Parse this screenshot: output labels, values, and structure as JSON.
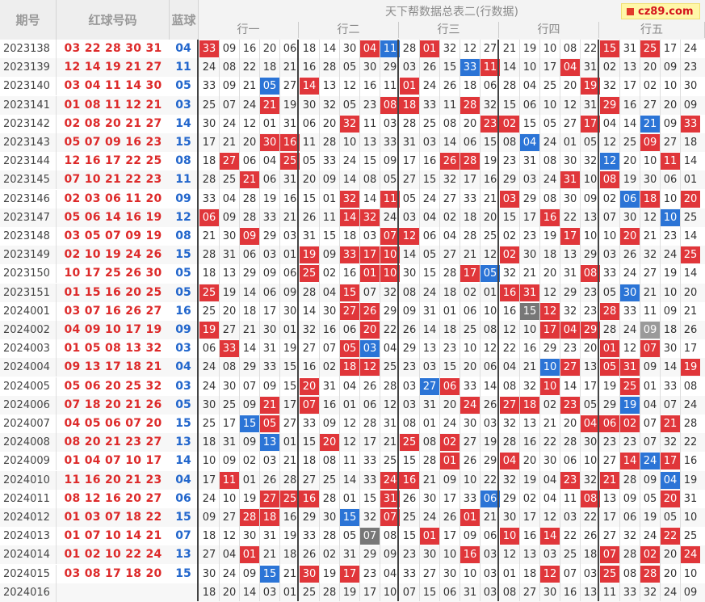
{
  "header": {
    "issue_label": "期号",
    "red_label": "红球号码",
    "blue_label": "蓝球",
    "table_title": "天下帮数据总表二(行数据)",
    "groups": [
      "行一",
      "行二",
      "行三",
      "行四",
      "行五"
    ],
    "logo_text": "cz89.com"
  },
  "colors": {
    "red": "#e0363a",
    "blue": "#2b74d6",
    "gray": "#777777"
  },
  "rows": [
    {
      "issue": "2023138",
      "red": "03 22 28 30 31 33",
      "blue": "04",
      "cells": [
        "33",
        "09",
        "16",
        "20",
        "06",
        "18",
        "14",
        "30",
        "04",
        "11",
        "28",
        "01",
        "32",
        "12",
        "27",
        "21",
        "19",
        "10",
        "08",
        "22",
        "15",
        "31",
        "25",
        "17",
        "24"
      ],
      "marks": "r0000000rb0r00000000r0r000"
    },
    {
      "issue": "2023139",
      "red": "12 14 19 21 27 31",
      "blue": "11",
      "cells": [
        "24",
        "08",
        "22",
        "18",
        "21",
        "16",
        "28",
        "05",
        "30",
        "29",
        "03",
        "26",
        "15",
        "33",
        "11",
        "14",
        "10",
        "17",
        "04",
        "31",
        "02",
        "13",
        "20",
        "09",
        "23"
      ],
      "marks": "0000000000000b r000r00000"
    },
    {
      "issue": "2023140",
      "red": "03 04 11 14 30 31",
      "blue": "05",
      "cells": [
        "33",
        "09",
        "21",
        "05",
        "27",
        "14",
        "13",
        "12",
        "16",
        "11",
        "01",
        "24",
        "26",
        "18",
        "06",
        "28",
        "04",
        "25",
        "20",
        "19",
        "32",
        "17",
        "02",
        "10",
        "30"
      ],
      "marks": "000b0r0000r00000000r000000r"
    },
    {
      "issue": "2023141",
      "red": "01 08 11 12 21 23",
      "blue": "03",
      "cells": [
        "25",
        "07",
        "24",
        "21",
        "19",
        "30",
        "32",
        "05",
        "23",
        "08",
        "18",
        "33",
        "11",
        "28",
        "32",
        "15",
        "06",
        "10",
        "12",
        "31",
        "29",
        "16",
        "27",
        "20",
        "09"
      ],
      "marks": "000r00000rr00r000000r000000"
    },
    {
      "issue": "2023142",
      "red": "02 08 20 21 27 33",
      "blue": "14",
      "cells": [
        "30",
        "24",
        "12",
        "01",
        "31",
        "06",
        "20",
        "32",
        "11",
        "03",
        "28",
        "25",
        "08",
        "20",
        "23",
        "02",
        "15",
        "05",
        "27",
        "17",
        "04",
        "14",
        "21",
        "09",
        "33"
      ],
      "marks": "0000000r000000rr000r00b0r0r"
    },
    {
      "issue": "2023143",
      "red": "05 07 09 16 23 30",
      "blue": "15",
      "cells": [
        "17",
        "21",
        "20",
        "30",
        "16",
        "11",
        "28",
        "10",
        "13",
        "33",
        "31",
        "03",
        "14",
        "06",
        "15",
        "08",
        "04",
        "24",
        "01",
        "05",
        "12",
        "25",
        "09",
        "27",
        "18"
      ],
      "marks": "000rr00000000000b00000r00r00"
    },
    {
      "issue": "2023144",
      "red": "12 16 17 22 25 27",
      "blue": "08",
      "cells": [
        "18",
        "27",
        "06",
        "04",
        "25",
        "05",
        "33",
        "24",
        "15",
        "09",
        "17",
        "16",
        "26",
        "28",
        "19",
        "23",
        "31",
        "08",
        "30",
        "32",
        "12",
        "20",
        "10",
        "11",
        "14"
      ],
      "marks": "0r00r0000000rr000000b00r0000"
    },
    {
      "issue": "2023145",
      "red": "07 10 21 22 23 24",
      "blue": "11",
      "cells": [
        "28",
        "25",
        "21",
        "06",
        "31",
        "20",
        "09",
        "14",
        "08",
        "05",
        "27",
        "15",
        "32",
        "17",
        "16",
        "29",
        "03",
        "24",
        "31",
        "10",
        "08",
        "19",
        "30",
        "06",
        "01"
      ],
      "marks": "00r000000000000000r0r00000"
    },
    {
      "issue": "2023146",
      "red": "02 03 06 11 20 32",
      "blue": "09",
      "cells": [
        "33",
        "04",
        "28",
        "19",
        "16",
        "15",
        "01",
        "32",
        "14",
        "11",
        "05",
        "24",
        "27",
        "33",
        "21",
        "03",
        "29",
        "08",
        "30",
        "09",
        "02",
        "06",
        "18",
        "10",
        "20"
      ],
      "marks": "0000000r0r00000r00000br0r00r"
    },
    {
      "issue": "2023147",
      "red": "05 06 14 16 19 32",
      "blue": "12",
      "cells": [
        "06",
        "09",
        "28",
        "33",
        "21",
        "26",
        "11",
        "14",
        "32",
        "24",
        "03",
        "04",
        "02",
        "18",
        "20",
        "15",
        "17",
        "16",
        "22",
        "13",
        "07",
        "30",
        "12",
        "10",
        "25"
      ],
      "marks": "r000000rr00000000r00000b00"
    },
    {
      "issue": "2023148",
      "red": "03 05 07 09 19 20",
      "blue": "08",
      "cells": [
        "21",
        "30",
        "09",
        "29",
        "03",
        "31",
        "15",
        "18",
        "03",
        "07",
        "12",
        "06",
        "04",
        "28",
        "25",
        "02",
        "23",
        "19",
        "17",
        "10",
        "10",
        "20",
        "21",
        "23",
        "14"
      ],
      "marks": "00r000000rr0000000r00r000"
    },
    {
      "issue": "2023149",
      "red": "02 10 19 24 26 33",
      "blue": "15",
      "cells": [
        "28",
        "31",
        "06",
        "03",
        "01",
        "19",
        "09",
        "33",
        "17",
        "10",
        "14",
        "05",
        "27",
        "21",
        "12",
        "02",
        "30",
        "18",
        "13",
        "29",
        "03",
        "26",
        "32",
        "24",
        "25"
      ],
      "marks": "00000r0rrr00000r00000000r0"
    },
    {
      "issue": "2023150",
      "red": "10 17 25 26 30 33",
      "blue": "05",
      "cells": [
        "18",
        "13",
        "29",
        "09",
        "06",
        "25",
        "02",
        "16",
        "01",
        "10",
        "30",
        "15",
        "28",
        "17",
        "05",
        "32",
        "21",
        "20",
        "31",
        "08",
        "33",
        "24",
        "27",
        "19",
        "14"
      ],
      "marks": "00000r00rr000rb0000r00000"
    },
    {
      "issue": "2023151",
      "red": "01 15 16 20 25 27",
      "blue": "05",
      "cells": [
        "25",
        "19",
        "14",
        "06",
        "09",
        "28",
        "04",
        "15",
        "07",
        "32",
        "08",
        "24",
        "18",
        "02",
        "01",
        "16",
        "31",
        "12",
        "29",
        "23",
        "05",
        "30",
        "21",
        "10",
        "20"
      ],
      "marks": "r000000r0000000rr0000b000r"
    },
    {
      "issue": "2024001",
      "red": "03 07 16 26 27 32",
      "blue": "16",
      "cells": [
        "25",
        "20",
        "18",
        "17",
        "30",
        "14",
        "30",
        "27",
        "26",
        "29",
        "09",
        "31",
        "01",
        "06",
        "10",
        "16",
        "15",
        "12",
        "32",
        "23",
        "28",
        "33",
        "11",
        "09",
        "21"
      ],
      "marks": "0000000rr0000000gr00r000000"
    },
    {
      "issue": "2024002",
      "red": "04 09 10 17 19 20",
      "blue": "09",
      "cells": [
        "19",
        "27",
        "21",
        "30",
        "01",
        "32",
        "16",
        "06",
        "20",
        "22",
        "26",
        "14",
        "18",
        "25",
        "08",
        "12",
        "10",
        "17",
        "04",
        "29",
        "28",
        "24",
        "09",
        "18",
        "26"
      ],
      "marks": "r0000000r00000000rrr00l000"
    },
    {
      "issue": "2024003",
      "red": "01 05 08 13 32 33",
      "blue": "03",
      "cells": [
        "06",
        "33",
        "14",
        "31",
        "19",
        "27",
        "07",
        "05",
        "03",
        "04",
        "29",
        "13",
        "23",
        "10",
        "12",
        "22",
        "16",
        "29",
        "23",
        "20",
        "01",
        "12",
        "07",
        "30",
        "17"
      ],
      "marks": "0r00000rb00000000000r0r00"
    },
    {
      "issue": "2024004",
      "red": "09 13 17 18 21 27",
      "blue": "04",
      "cells": [
        "24",
        "08",
        "29",
        "33",
        "15",
        "16",
        "02",
        "18",
        "12",
        "25",
        "23",
        "03",
        "15",
        "20",
        "06",
        "04",
        "21",
        "10",
        "27",
        "13",
        "05",
        "31",
        "09",
        "14",
        "19"
      ],
      "marks": "0000000rr00000000br0rr00r000"
    },
    {
      "issue": "2024005",
      "red": "05 06 20 25 32 32",
      "blue": "03",
      "cells": [
        "24",
        "30",
        "07",
        "09",
        "15",
        "20",
        "31",
        "04",
        "26",
        "28",
        "03",
        "27",
        "06",
        "33",
        "14",
        "08",
        "32",
        "10",
        "14",
        "17",
        "19",
        "25",
        "01",
        "33",
        "08"
      ],
      "marks": "00000r00000br0000r000r00000"
    },
    {
      "issue": "2024006",
      "red": "07 18 20 21 26 32",
      "blue": "05",
      "cells": [
        "30",
        "25",
        "09",
        "21",
        "17",
        "07",
        "16",
        "01",
        "06",
        "12",
        "03",
        "31",
        "20",
        "24",
        "26",
        "27",
        "18",
        "02",
        "23",
        "05",
        "29",
        "19",
        "04",
        "07",
        "24"
      ],
      "marks": "000r0r0000000r0rr0r00b000r0"
    },
    {
      "issue": "2024007",
      "red": "04 05 06 07 20 22",
      "blue": "15",
      "cells": [
        "25",
        "17",
        "15",
        "05",
        "27",
        "33",
        "09",
        "12",
        "28",
        "31",
        "08",
        "01",
        "24",
        "30",
        "03",
        "32",
        "13",
        "21",
        "20",
        "04",
        "06",
        "02",
        "07",
        "21",
        "28"
      ],
      "marks": "00br000000000000000rrr0r000"
    },
    {
      "issue": "2024008",
      "red": "08 20 21 23 27 30",
      "blue": "13",
      "cells": [
        "18",
        "31",
        "09",
        "13",
        "01",
        "15",
        "20",
        "12",
        "17",
        "21",
        "25",
        "08",
        "02",
        "27",
        "19",
        "28",
        "16",
        "22",
        "28",
        "30",
        "23",
        "23",
        "07",
        "32",
        "22"
      ],
      "marks": "000b00r000r0r000000000000"
    },
    {
      "issue": "2024009",
      "red": "01 04 07 10 17 23",
      "blue": "14",
      "cells": [
        "10",
        "09",
        "02",
        "03",
        "21",
        "18",
        "08",
        "11",
        "33",
        "25",
        "15",
        "28",
        "01",
        "26",
        "29",
        "04",
        "20",
        "30",
        "06",
        "10",
        "27",
        "14",
        "24",
        "17",
        "16"
      ],
      "marks": "000000000000r00r00000rbr0r0"
    },
    {
      "issue": "2024010",
      "red": "11 16 20 21 23 24",
      "blue": "04",
      "cells": [
        "17",
        "11",
        "01",
        "26",
        "28",
        "27",
        "25",
        "14",
        "33",
        "24",
        "16",
        "21",
        "09",
        "10",
        "22",
        "32",
        "19",
        "04",
        "23",
        "32",
        "21",
        "28",
        "09",
        "04",
        "19"
      ],
      "marks": "0r0000000rr0000000r0r00b0"
    },
    {
      "issue": "2024011",
      "red": "08 12 16 20 27 31",
      "blue": "06",
      "cells": [
        "24",
        "10",
        "19",
        "27",
        "25",
        "16",
        "28",
        "01",
        "15",
        "31",
        "26",
        "30",
        "17",
        "33",
        "06",
        "29",
        "02",
        "04",
        "11",
        "08",
        "13",
        "09",
        "05",
        "20",
        "31"
      ],
      "marks": "000rrr000r0000b0000r000r0"
    },
    {
      "issue": "2024012",
      "red": "01 03 07 18 22 28",
      "blue": "15",
      "cells": [
        "09",
        "27",
        "28",
        "18",
        "16",
        "29",
        "30",
        "15",
        "32",
        "07",
        "25",
        "24",
        "26",
        "01",
        "21",
        "30",
        "17",
        "12",
        "03",
        "22",
        "17",
        "06",
        "19",
        "05",
        "10"
      ],
      "marks": "00rr000b0r000r00000000000"
    },
    {
      "issue": "2024013",
      "red": "01 07 10 14 21 25",
      "blue": "07",
      "cells": [
        "18",
        "12",
        "30",
        "31",
        "19",
        "33",
        "28",
        "05",
        "07",
        "08",
        "15",
        "01",
        "17",
        "09",
        "06",
        "10",
        "16",
        "14",
        "22",
        "26",
        "27",
        "32",
        "24",
        "22",
        "25"
      ],
      "marks": "00000000g00r000r0r00000r"
    },
    {
      "issue": "2024014",
      "red": "01 02 10 22 24 25",
      "blue": "13",
      "cells": [
        "27",
        "04",
        "01",
        "21",
        "18",
        "26",
        "02",
        "31",
        "29",
        "09",
        "23",
        "30",
        "10",
        "16",
        "03",
        "12",
        "13",
        "03",
        "25",
        "18",
        "07",
        "28",
        "02",
        "20",
        "24"
      ],
      "marks": "00r0000000000r000000r0r0r0"
    },
    {
      "issue": "2024015",
      "red": "03 08 17 18 20 30",
      "blue": "15",
      "cells": [
        "30",
        "24",
        "09",
        "15",
        "21",
        "30",
        "19",
        "17",
        "23",
        "04",
        "33",
        "27",
        "30",
        "10",
        "03",
        "01",
        "18",
        "12",
        "07",
        "03",
        "25",
        "08",
        "28",
        "20",
        "10"
      ],
      "marks": "000b0r0r000000000r00r0r00"
    },
    {
      "issue": "2024016",
      "red": "",
      "blue": "",
      "cells": [
        "18",
        "20",
        "14",
        "03",
        "01",
        "25",
        "28",
        "19",
        "17",
        "10",
        "07",
        "15",
        "06",
        "31",
        "03",
        "08",
        "27",
        "30",
        "16",
        "13",
        "11",
        "33",
        "32",
        "24",
        "09"
      ],
      "marks": "0000000000000000000000000"
    }
  ]
}
